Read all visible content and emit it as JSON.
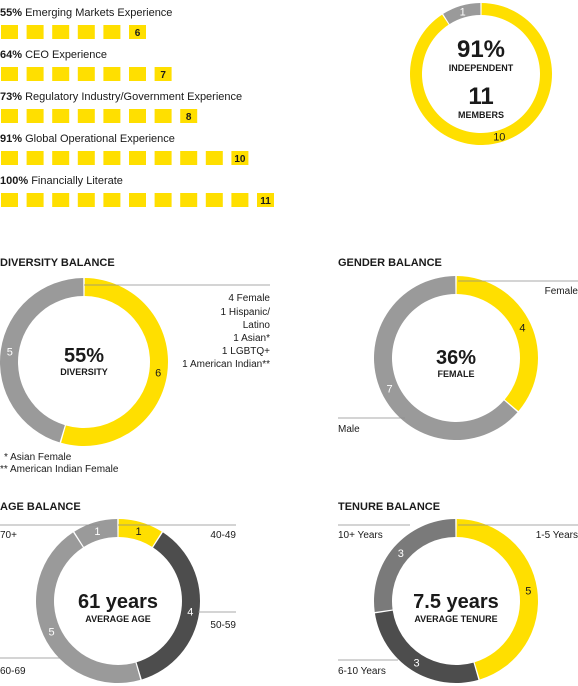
{
  "colors": {
    "yellow": "#FFDF00",
    "gray": "#9A9A9A",
    "dark": "#4D4D4D",
    "dark2": "#7A7A7A",
    "text": "#1A1A1A",
    "line": "#8C8C8C"
  },
  "skills": [
    {
      "pct": "55%",
      "label": "Emerging Markets Experience",
      "count": 6
    },
    {
      "pct": "64%",
      "label": "CEO Experience",
      "count": 7
    },
    {
      "pct": "73%",
      "label": "Regulatory Industry/Government Experience",
      "count": 8
    },
    {
      "pct": "91%",
      "label": "Global Operational Experience",
      "count": 10
    },
    {
      "pct": "100%",
      "label": "Financially Literate",
      "count": 11
    }
  ],
  "independence": {
    "pct": "91%",
    "pct_label": "INDEPENDENT",
    "members": "11",
    "members_label": "MEMBERS",
    "slices": [
      {
        "value": 10,
        "label": "10",
        "color": "yellow"
      },
      {
        "value": 1,
        "label": "1",
        "color": "gray"
      }
    ]
  },
  "diversity": {
    "title": "DIVERSITY BALANCE",
    "center": "55%",
    "sub": "DIVERSITY",
    "slices": [
      {
        "value": 6,
        "label": "6",
        "color": "yellow"
      },
      {
        "value": 5,
        "label": "5",
        "color": "gray"
      }
    ],
    "legend": [
      "4 Female",
      "1 Hispanic/",
      "Latino",
      "1 Asian*",
      "1 LGBTQ+",
      "1 American Indian**"
    ],
    "footnotes": [
      "* Asian Female",
      "** American Indian Female"
    ]
  },
  "gender": {
    "title": "GENDER BALANCE",
    "center": "36%",
    "sub": "FEMALE",
    "slices": [
      {
        "value": 4,
        "label": "4",
        "color": "yellow"
      },
      {
        "value": 7,
        "label": "7",
        "color": "gray"
      }
    ],
    "labels": {
      "female": "Female",
      "male": "Male"
    }
  },
  "age": {
    "title": "AGE BALANCE",
    "center": "61 years",
    "sub": "AVERAGE AGE",
    "slices": [
      {
        "value": 1,
        "label": "1",
        "color": "yellow",
        "range": "40-49"
      },
      {
        "value": 4,
        "label": "4",
        "color": "dark",
        "range": "50-59"
      },
      {
        "value": 5,
        "label": "5",
        "color": "gray",
        "range": "60-69"
      },
      {
        "value": 1,
        "label": "1",
        "color": "gray",
        "range": "70+"
      }
    ]
  },
  "tenure": {
    "title": "TENURE BALANCE",
    "center": "7.5 years",
    "sub": "AVERAGE TENURE",
    "slices": [
      {
        "value": 5,
        "label": "5",
        "color": "yellow",
        "range": "1-5 Years"
      },
      {
        "value": 3,
        "label": "3",
        "color": "dark",
        "range": "6-10 Years"
      },
      {
        "value": 3,
        "label": "3",
        "color": "dark2",
        "range": "10+ Years"
      }
    ]
  },
  "chart_data": [
    {
      "type": "bar",
      "categories": [
        "Emerging Markets Experience",
        "CEO Experience",
        "Regulatory Industry/Government Experience",
        "Global Operational Experience",
        "Financially Literate"
      ],
      "values": [
        6,
        7,
        8,
        10,
        11
      ]
    },
    {
      "type": "pie",
      "categories": [
        "10",
        "1"
      ],
      "values": [
        10,
        1
      ]
    },
    {
      "type": "pie",
      "title": "DIVERSITY BALANCE",
      "categories": [
        "6",
        "5"
      ],
      "values": [
        6,
        5
      ]
    },
    {
      "type": "pie",
      "title": "GENDER BALANCE",
      "categories": [
        "Female",
        "Male"
      ],
      "values": [
        4,
        7
      ]
    },
    {
      "type": "pie",
      "title": "AGE BALANCE",
      "categories": [
        "40-49",
        "50-59",
        "60-69",
        "70+"
      ],
      "values": [
        1,
        4,
        5,
        1
      ]
    },
    {
      "type": "pie",
      "title": "TENURE BALANCE",
      "categories": [
        "1-5 Years",
        "6-10 Years",
        "10+ Years"
      ],
      "values": [
        5,
        3,
        3
      ]
    }
  ]
}
